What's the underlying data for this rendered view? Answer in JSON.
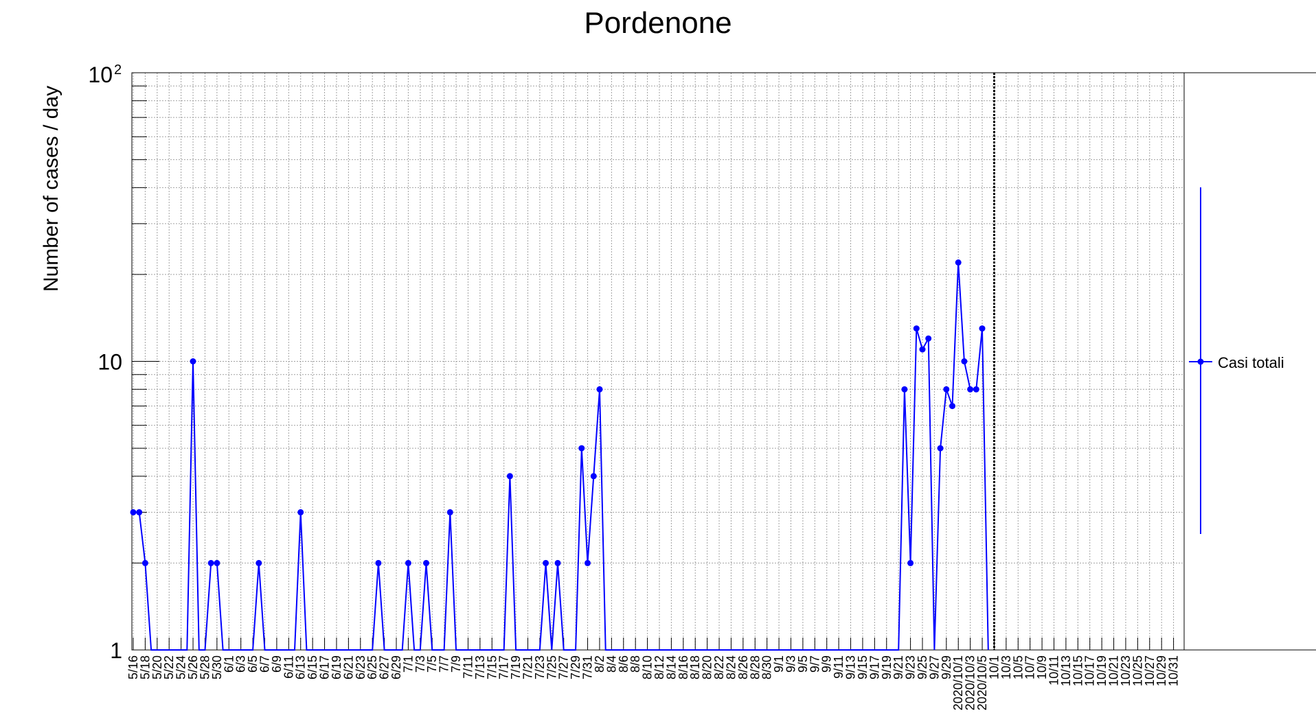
{
  "chart_data": {
    "type": "line",
    "title": "Pordenone",
    "ylabel": "Number of cases / day",
    "xlabel": "",
    "y_scale": "log",
    "ylim": [
      1,
      100
    ],
    "y_ticks": [
      {
        "value": 1,
        "label": "1",
        "exp": ""
      },
      {
        "value": 10,
        "label": "10",
        "exp": ""
      },
      {
        "value": 100,
        "label": "10",
        "exp": "2"
      }
    ],
    "x_tick_labels": [
      "5/16",
      "5/18",
      "5/20",
      "5/22",
      "5/24",
      "5/26",
      "5/28",
      "5/30",
      "6/1",
      "6/3",
      "6/5",
      "6/7",
      "6/9",
      "6/11",
      "6/13",
      "6/15",
      "6/17",
      "6/19",
      "6/21",
      "6/23",
      "6/25",
      "6/27",
      "6/29",
      "7/1",
      "7/3",
      "7/5",
      "7/7",
      "7/9",
      "7/11",
      "7/13",
      "7/15",
      "7/17",
      "7/19",
      "7/21",
      "7/23",
      "7/25",
      "7/27",
      "7/29",
      "7/31",
      "8/2",
      "8/4",
      "8/6",
      "8/8",
      "8/10",
      "8/12",
      "8/14",
      "8/16",
      "8/18",
      "8/20",
      "8/22",
      "8/24",
      "8/26",
      "8/28",
      "8/30",
      "9/1",
      "9/3",
      "9/5",
      "9/7",
      "9/9",
      "9/11",
      "9/13",
      "9/15",
      "9/17",
      "9/19",
      "9/21",
      "9/23",
      "9/25",
      "9/27",
      "9/29",
      "2020/10/1",
      "2020/10/3",
      "2020/10/5",
      "10/1",
      "10/3",
      "10/5",
      "10/7",
      "10/9",
      "10/11",
      "10/13",
      "10/15",
      "10/17",
      "10/19",
      "10/21",
      "10/23",
      "10/25",
      "10/27",
      "10/29",
      "10/31"
    ],
    "grid": true,
    "legend_position": "right",
    "vertical_marker": "2020-10-07",
    "series": [
      {
        "name": "Casi totali",
        "color": "#0000ff",
        "points": [
          {
            "x": "2020-05-16",
            "y": 3
          },
          {
            "x": "2020-05-17",
            "y": 3
          },
          {
            "x": "2020-05-18",
            "y": 2
          },
          {
            "x": "2020-05-19",
            "y": 0
          },
          {
            "x": "2020-05-20",
            "y": 0
          },
          {
            "x": "2020-05-21",
            "y": 0
          },
          {
            "x": "2020-05-22",
            "y": 0
          },
          {
            "x": "2020-05-23",
            "y": 0
          },
          {
            "x": "2020-05-24",
            "y": 0
          },
          {
            "x": "2020-05-25",
            "y": 0
          },
          {
            "x": "2020-05-26",
            "y": 10
          },
          {
            "x": "2020-05-27",
            "y": 0
          },
          {
            "x": "2020-05-28",
            "y": 0
          },
          {
            "x": "2020-05-29",
            "y": 2
          },
          {
            "x": "2020-05-30",
            "y": 2
          },
          {
            "x": "2020-05-31",
            "y": 0
          },
          {
            "x": "2020-06-01",
            "y": 0
          },
          {
            "x": "2020-06-02",
            "y": 0
          },
          {
            "x": "2020-06-03",
            "y": 0
          },
          {
            "x": "2020-06-04",
            "y": 0
          },
          {
            "x": "2020-06-05",
            "y": 0
          },
          {
            "x": "2020-06-06",
            "y": 2
          },
          {
            "x": "2020-06-07",
            "y": 0
          },
          {
            "x": "2020-06-08",
            "y": 0
          },
          {
            "x": "2020-06-09",
            "y": 0
          },
          {
            "x": "2020-06-10",
            "y": 0
          },
          {
            "x": "2020-06-11",
            "y": 0
          },
          {
            "x": "2020-06-12",
            "y": 0
          },
          {
            "x": "2020-06-13",
            "y": 3
          },
          {
            "x": "2020-06-14",
            "y": 0
          },
          {
            "x": "2020-06-15",
            "y": 0
          },
          {
            "x": "2020-06-16",
            "y": 0
          },
          {
            "x": "2020-06-17",
            "y": 0
          },
          {
            "x": "2020-06-18",
            "y": 0
          },
          {
            "x": "2020-06-19",
            "y": 0
          },
          {
            "x": "2020-06-20",
            "y": 0
          },
          {
            "x": "2020-06-21",
            "y": 0
          },
          {
            "x": "2020-06-22",
            "y": 0
          },
          {
            "x": "2020-06-23",
            "y": 0
          },
          {
            "x": "2020-06-24",
            "y": 0
          },
          {
            "x": "2020-06-25",
            "y": 0
          },
          {
            "x": "2020-06-26",
            "y": 2
          },
          {
            "x": "2020-06-27",
            "y": 0
          },
          {
            "x": "2020-06-28",
            "y": 0
          },
          {
            "x": "2020-06-29",
            "y": 0
          },
          {
            "x": "2020-06-30",
            "y": 0
          },
          {
            "x": "2020-07-01",
            "y": 2
          },
          {
            "x": "2020-07-02",
            "y": 0
          },
          {
            "x": "2020-07-03",
            "y": 0
          },
          {
            "x": "2020-07-04",
            "y": 2
          },
          {
            "x": "2020-07-05",
            "y": 0
          },
          {
            "x": "2020-07-06",
            "y": 0
          },
          {
            "x": "2020-07-07",
            "y": 0
          },
          {
            "x": "2020-07-08",
            "y": 3
          },
          {
            "x": "2020-07-09",
            "y": 0
          },
          {
            "x": "2020-07-10",
            "y": 0
          },
          {
            "x": "2020-07-11",
            "y": 0
          },
          {
            "x": "2020-07-12",
            "y": 0
          },
          {
            "x": "2020-07-13",
            "y": 0
          },
          {
            "x": "2020-07-14",
            "y": 0
          },
          {
            "x": "2020-07-15",
            "y": 0
          },
          {
            "x": "2020-07-16",
            "y": 0
          },
          {
            "x": "2020-07-17",
            "y": 0
          },
          {
            "x": "2020-07-18",
            "y": 4
          },
          {
            "x": "2020-07-19",
            "y": 0
          },
          {
            "x": "2020-07-20",
            "y": 0
          },
          {
            "x": "2020-07-21",
            "y": 0
          },
          {
            "x": "2020-07-22",
            "y": 0
          },
          {
            "x": "2020-07-23",
            "y": 0
          },
          {
            "x": "2020-07-24",
            "y": 2
          },
          {
            "x": "2020-07-25",
            "y": 0
          },
          {
            "x": "2020-07-26",
            "y": 2
          },
          {
            "x": "2020-07-27",
            "y": 0
          },
          {
            "x": "2020-07-28",
            "y": 0
          },
          {
            "x": "2020-07-29",
            "y": 0
          },
          {
            "x": "2020-07-30",
            "y": 5
          },
          {
            "x": "2020-07-31",
            "y": 2
          },
          {
            "x": "2020-08-01",
            "y": 4
          },
          {
            "x": "2020-08-02",
            "y": 8
          },
          {
            "x": "2020-08-03",
            "y": 0
          },
          {
            "x": "2020-08-04",
            "y": 0
          },
          {
            "x": "2020-08-05",
            "y": 0
          },
          {
            "x": "2020-08-06",
            "y": 0
          },
          {
            "x": "2020-08-07",
            "y": 0
          },
          {
            "x": "2020-08-08",
            "y": 0
          },
          {
            "x": "2020-08-09",
            "y": 0
          },
          {
            "x": "2020-08-10",
            "y": 0
          },
          {
            "x": "2020-08-11",
            "y": 0
          },
          {
            "x": "2020-08-12",
            "y": 0
          },
          {
            "x": "2020-08-13",
            "y": 0
          },
          {
            "x": "2020-08-14",
            "y": 0
          },
          {
            "x": "2020-08-15",
            "y": 0
          },
          {
            "x": "2020-08-16",
            "y": 0
          },
          {
            "x": "2020-08-17",
            "y": 0
          },
          {
            "x": "2020-08-18",
            "y": 0
          },
          {
            "x": "2020-08-19",
            "y": 0
          },
          {
            "x": "2020-08-20",
            "y": 0
          },
          {
            "x": "2020-08-21",
            "y": 0
          },
          {
            "x": "2020-08-22",
            "y": 0
          },
          {
            "x": "2020-08-23",
            "y": 0
          },
          {
            "x": "2020-08-24",
            "y": 0
          },
          {
            "x": "2020-08-25",
            "y": 0
          },
          {
            "x": "2020-08-26",
            "y": 0
          },
          {
            "x": "2020-08-27",
            "y": 0
          },
          {
            "x": "2020-08-28",
            "y": 0
          },
          {
            "x": "2020-08-29",
            "y": 0
          },
          {
            "x": "2020-08-30",
            "y": 0
          },
          {
            "x": "2020-08-31",
            "y": 0
          },
          {
            "x": "2020-09-01",
            "y": 0
          },
          {
            "x": "2020-09-02",
            "y": 0
          },
          {
            "x": "2020-09-03",
            "y": 0
          },
          {
            "x": "2020-09-04",
            "y": 0
          },
          {
            "x": "2020-09-05",
            "y": 0
          },
          {
            "x": "2020-09-06",
            "y": 0
          },
          {
            "x": "2020-09-07",
            "y": 0
          },
          {
            "x": "2020-09-08",
            "y": 0
          },
          {
            "x": "2020-09-09",
            "y": 0
          },
          {
            "x": "2020-09-10",
            "y": 0
          },
          {
            "x": "2020-09-11",
            "y": 0
          },
          {
            "x": "2020-09-12",
            "y": 0
          },
          {
            "x": "2020-09-13",
            "y": 0
          },
          {
            "x": "2020-09-14",
            "y": 0
          },
          {
            "x": "2020-09-15",
            "y": 0
          },
          {
            "x": "2020-09-16",
            "y": 0
          },
          {
            "x": "2020-09-17",
            "y": 0
          },
          {
            "x": "2020-09-18",
            "y": 0
          },
          {
            "x": "2020-09-19",
            "y": 0
          },
          {
            "x": "2020-09-20",
            "y": 0
          },
          {
            "x": "2020-09-21",
            "y": 0
          },
          {
            "x": "2020-09-22",
            "y": 8
          },
          {
            "x": "2020-09-23",
            "y": 2
          },
          {
            "x": "2020-09-24",
            "y": 13
          },
          {
            "x": "2020-09-25",
            "y": 11
          },
          {
            "x": "2020-09-26",
            "y": 12
          },
          {
            "x": "2020-09-27",
            "y": 0
          },
          {
            "x": "2020-09-28",
            "y": 5
          },
          {
            "x": "2020-09-29",
            "y": 8
          },
          {
            "x": "2020-09-30",
            "y": 7
          },
          {
            "x": "2020-10-01",
            "y": 22
          },
          {
            "x": "2020-10-02",
            "y": 10
          },
          {
            "x": "2020-10-03",
            "y": 8
          },
          {
            "x": "2020-10-04",
            "y": 8
          },
          {
            "x": "2020-10-05",
            "y": 13
          },
          {
            "x": "2020-10-06",
            "y": 0
          }
        ]
      }
    ]
  }
}
